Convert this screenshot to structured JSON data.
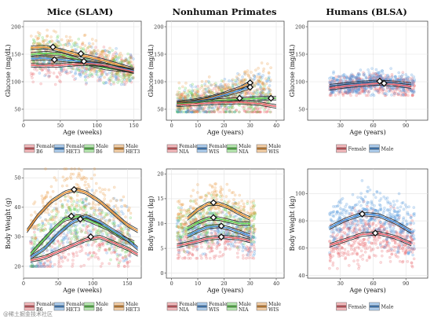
{
  "watermark": "@稀土掘金技术社区",
  "colors": {
    "female_b6": "#E8636B",
    "female_het3": "#4A90D9",
    "male_b6": "#5FCF4F",
    "male_het3": "#E8953A",
    "female_nia": "#E8636B",
    "female_wis": "#4A90D9",
    "male_nia": "#5FCF4F",
    "male_wis": "#E8953A",
    "female": "#E8636B",
    "male": "#4A90D9"
  },
  "chart_data": [
    {
      "id": "mice_glucose",
      "type": "scatter+line",
      "title": "Mice (SLAM)",
      "xlabel": "Age (weeks)",
      "ylabel": "Glucose (mg/dL)",
      "xlim": [
        0,
        160
      ],
      "ylim": [
        30,
        210
      ],
      "xticks": [
        0,
        50,
        100,
        150
      ],
      "yticks": [
        50,
        100,
        150,
        200
      ],
      "legend": [
        {
          "name": "Female B6",
          "line1": "Female",
          "line2": "B6",
          "color_key": "female_b6"
        },
        {
          "name": "Female HET3",
          "line1": "Female",
          "line2": "HET3",
          "color_key": "female_het3"
        },
        {
          "name": "Male B6",
          "line1": "Male",
          "line2": "B6",
          "color_key": "male_b6"
        },
        {
          "name": "Male HET3",
          "line1": "Male",
          "line2": "HET3",
          "color_key": "male_het3"
        }
      ],
      "series": [
        {
          "name": "Male HET3",
          "color_key": "male_het3",
          "x": [
            10,
            30,
            50,
            70,
            90,
            110,
            130,
            150
          ],
          "y": [
            162,
            163,
            157,
            150,
            145,
            138,
            130,
            122
          ]
        },
        {
          "name": "Male B6",
          "color_key": "male_b6",
          "x": [
            10,
            30,
            50,
            70,
            90,
            110,
            130,
            150
          ],
          "y": [
            150,
            152,
            150,
            142,
            132,
            125,
            122,
            120
          ]
        },
        {
          "name": "Female HET3",
          "color_key": "female_het3",
          "x": [
            10,
            30,
            50,
            70,
            90,
            110,
            130,
            150
          ],
          "y": [
            142,
            143,
            140,
            138,
            135,
            130,
            125,
            120
          ]
        },
        {
          "name": "Female B6",
          "color_key": "female_b6",
          "x": [
            10,
            30,
            50,
            70,
            90,
            110,
            130,
            150
          ],
          "y": [
            130,
            129,
            130,
            132,
            133,
            130,
            124,
            118
          ]
        }
      ],
      "peaks": [
        {
          "x": 40,
          "y": 163
        },
        {
          "x": 78,
          "y": 151
        },
        {
          "x": 42,
          "y": 140
        },
        {
          "x": 82,
          "y": 137
        }
      ],
      "scatter": {
        "x_range": [
          10,
          150
        ],
        "y_range": [
          95,
          200
        ]
      }
    },
    {
      "id": "nhp_glucose",
      "type": "scatter+line",
      "title": "Nonhuman Primates",
      "xlabel": "Age (years)",
      "ylabel": "Glucose (mg/dL)",
      "xlim": [
        -2,
        43
      ],
      "ylim": [
        30,
        210
      ],
      "xticks": [
        0,
        10,
        20,
        30,
        40
      ],
      "yticks": [
        50,
        100,
        150,
        200
      ],
      "legend": [
        {
          "name": "Female NIA",
          "line1": "Female",
          "line2": "NIA",
          "color_key": "female_nia"
        },
        {
          "name": "Female WIS",
          "line1": "Female",
          "line2": "WIS",
          "color_key": "female_wis"
        },
        {
          "name": "Male NIA",
          "line1": "Male",
          "line2": "NIA",
          "color_key": "male_nia"
        },
        {
          "name": "Male WIS",
          "line1": "Male",
          "line2": "WIS",
          "color_key": "male_wis"
        }
      ],
      "series": [
        {
          "name": "Male WIS",
          "color_key": "male_wis",
          "x": [
            2,
            8,
            14,
            20,
            26,
            30
          ],
          "y": [
            62,
            65,
            70,
            78,
            88,
            98
          ]
        },
        {
          "name": "Female WIS",
          "color_key": "female_wis",
          "x": [
            2,
            8,
            14,
            20,
            26,
            30
          ],
          "y": [
            60,
            63,
            68,
            76,
            84,
            90
          ]
        },
        {
          "name": "Male NIA",
          "color_key": "male_nia",
          "x": [
            2,
            10,
            18,
            26,
            34,
            40
          ],
          "y": [
            60,
            63,
            66,
            68,
            70,
            70
          ]
        },
        {
          "name": "Female NIA",
          "color_key": "female_nia",
          "x": [
            2,
            10,
            18,
            26,
            34,
            40
          ],
          "y": [
            58,
            60,
            62,
            63,
            60,
            55
          ]
        }
      ],
      "peaks": [
        {
          "x": 30,
          "y": 98
        },
        {
          "x": 30,
          "y": 90
        },
        {
          "x": 26,
          "y": 70
        },
        {
          "x": 38,
          "y": 70
        }
      ],
      "scatter": {
        "x_range": [
          2,
          38
        ],
        "y_range": [
          45,
          150
        ]
      }
    },
    {
      "id": "human_glucose",
      "type": "scatter+line",
      "title": "Humans (BLSA)",
      "xlabel": "Age (years)",
      "ylabel": "Glucose (mg/dL)",
      "xlim": [
        0,
        110
      ],
      "ylim": [
        30,
        210
      ],
      "xticks": [
        30,
        60,
        90
      ],
      "yticks": [
        50,
        100,
        150,
        200
      ],
      "legend": [
        {
          "name": "Female",
          "line1": "Female",
          "line2": "",
          "color_key": "female"
        },
        {
          "name": "Male",
          "line1": "Male",
          "line2": "",
          "color_key": "male"
        }
      ],
      "series": [
        {
          "name": "Male",
          "color_key": "male",
          "x": [
            20,
            35,
            50,
            65,
            80,
            95
          ],
          "y": [
            92,
            95,
            98,
            100,
            98,
            95
          ]
        },
        {
          "name": "Female",
          "color_key": "female",
          "x": [
            20,
            35,
            50,
            65,
            80,
            95
          ],
          "y": [
            88,
            92,
            95,
            97,
            95,
            91
          ]
        }
      ],
      "peaks": [
        {
          "x": 66,
          "y": 101
        },
        {
          "x": 70,
          "y": 97
        }
      ],
      "scatter": {
        "x_range": [
          20,
          98
        ],
        "y_range": [
          75,
          145
        ]
      }
    },
    {
      "id": "mice_weight",
      "type": "scatter+line",
      "title": "",
      "xlabel": "Age (weeks)",
      "ylabel": "Body Weight (g)",
      "xlim": [
        0,
        170
      ],
      "ylim": [
        16,
        53
      ],
      "xticks": [
        0,
        50,
        100,
        150
      ],
      "yticks": [
        20,
        30,
        40,
        50
      ],
      "legend": [
        {
          "name": "Female B6",
          "line1": "Female",
          "line2": "B6",
          "color_key": "female_b6"
        },
        {
          "name": "Female HET3",
          "line1": "Female",
          "line2": "HET3",
          "color_key": "female_het3"
        },
        {
          "name": "Male B6",
          "line1": "Male",
          "line2": "B6",
          "color_key": "male_b6"
        },
        {
          "name": "Male HET3",
          "line1": "Male",
          "line2": "HET3",
          "color_key": "male_het3"
        }
      ],
      "series": [
        {
          "name": "Male HET3",
          "color_key": "male_het3",
          "x": [
            5,
            20,
            40,
            60,
            75,
            90,
            110,
            130,
            150,
            165
          ],
          "y": [
            32,
            37,
            42,
            45,
            46,
            45,
            42,
            38,
            34,
            32
          ]
        },
        {
          "name": "Male B6",
          "color_key": "male_b6",
          "x": [
            10,
            25,
            45,
            60,
            80,
            100,
            120,
            140,
            160
          ],
          "y": [
            24,
            28,
            33,
            36,
            37,
            35,
            33,
            30,
            28
          ]
        },
        {
          "name": "Female HET3",
          "color_key": "female_het3",
          "x": [
            10,
            30,
            50,
            70,
            90,
            110,
            130,
            150,
            165
          ],
          "y": [
            23,
            26,
            31,
            35,
            37,
            35,
            32,
            29,
            26
          ]
        },
        {
          "name": "Female B6",
          "color_key": "female_b6",
          "x": [
            10,
            30,
            50,
            70,
            90,
            110,
            130,
            150,
            165
          ],
          "y": [
            22,
            23,
            25,
            27,
            29,
            30,
            28,
            26,
            24
          ]
        }
      ],
      "peaks": [
        {
          "x": 73,
          "y": 46
        },
        {
          "x": 69,
          "y": 37
        },
        {
          "x": 82,
          "y": 36
        },
        {
          "x": 97,
          "y": 30
        }
      ],
      "scatter": {
        "x_range": [
          10,
          155
        ],
        "y_range": [
          20,
          53
        ]
      }
    },
    {
      "id": "nhp_weight",
      "type": "scatter+line",
      "title": "",
      "xlabel": "Age (years)",
      "ylabel": "Body Weight (kg)",
      "xlim": [
        -2,
        43
      ],
      "ylim": [
        -1,
        21
      ],
      "xticks": [
        0,
        10,
        20,
        30,
        40
      ],
      "yticks": [
        0,
        5,
        10,
        15,
        20
      ],
      "legend": [
        {
          "name": "Female NIA",
          "line1": "Female",
          "line2": "NIA",
          "color_key": "female_nia"
        },
        {
          "name": "Female WIS",
          "line1": "Female",
          "line2": "WIS",
          "color_key": "female_wis"
        },
        {
          "name": "Male NIA",
          "line1": "Male",
          "line2": "NIA",
          "color_key": "male_nia"
        },
        {
          "name": "Male WIS",
          "line1": "Male",
          "line2": "WIS",
          "color_key": "male_wis"
        }
      ],
      "series": [
        {
          "name": "Male WIS",
          "color_key": "male_wis",
          "x": [
            6,
            10,
            14,
            18,
            22,
            26,
            30
          ],
          "y": [
            11,
            12.8,
            14,
            14,
            13.2,
            12,
            11
          ]
        },
        {
          "name": "Male NIA",
          "color_key": "male_nia",
          "x": [
            6,
            10,
            14,
            18,
            22,
            26,
            30
          ],
          "y": [
            9,
            10.2,
            11,
            11,
            10.5,
            10,
            10
          ]
        },
        {
          "name": "Female WIS",
          "color_key": "female_wis",
          "x": [
            6,
            10,
            14,
            18,
            22,
            26,
            30
          ],
          "y": [
            7.5,
            8.5,
            9.3,
            9.5,
            9,
            8.3,
            7.5
          ]
        },
        {
          "name": "Female NIA",
          "color_key": "female_nia",
          "x": [
            2,
            8,
            14,
            20,
            26,
            30
          ],
          "y": [
            5.5,
            6.2,
            7,
            7.3,
            7,
            6.5
          ]
        }
      ],
      "peaks": [
        {
          "x": 16,
          "y": 14.2
        },
        {
          "x": 16,
          "y": 11.2
        },
        {
          "x": 19,
          "y": 9.5
        },
        {
          "x": 19,
          "y": 7.3
        }
      ],
      "scatter": {
        "x_range": [
          2,
          32
        ],
        "y_range": [
          3,
          18
        ]
      }
    },
    {
      "id": "human_weight",
      "type": "scatter+line",
      "title": "",
      "xlabel": "Age (years)",
      "ylabel": "Body Weight (kg)",
      "xlim": [
        0,
        110
      ],
      "ylim": [
        38,
        118
      ],
      "xticks": [
        30,
        60,
        90
      ],
      "yticks": [
        40,
        60,
        80,
        100
      ],
      "legend": [
        {
          "name": "Female",
          "line1": "Female",
          "line2": "",
          "color_key": "female"
        },
        {
          "name": "Male",
          "line1": "Male",
          "line2": "",
          "color_key": "male"
        }
      ],
      "series": [
        {
          "name": "Male",
          "color_key": "male",
          "x": [
            20,
            35,
            50,
            65,
            80,
            95
          ],
          "y": [
            75,
            81,
            85,
            84,
            79,
            72
          ]
        },
        {
          "name": "Female",
          "color_key": "female",
          "x": [
            20,
            35,
            50,
            65,
            80,
            95
          ],
          "y": [
            62,
            66,
            70,
            71,
            68,
            63
          ]
        }
      ],
      "peaks": [
        {
          "x": 50,
          "y": 85
        },
        {
          "x": 62,
          "y": 71
        }
      ],
      "scatter": {
        "x_range": [
          20,
          98
        ],
        "y_range": [
          45,
          110
        ]
      }
    }
  ]
}
